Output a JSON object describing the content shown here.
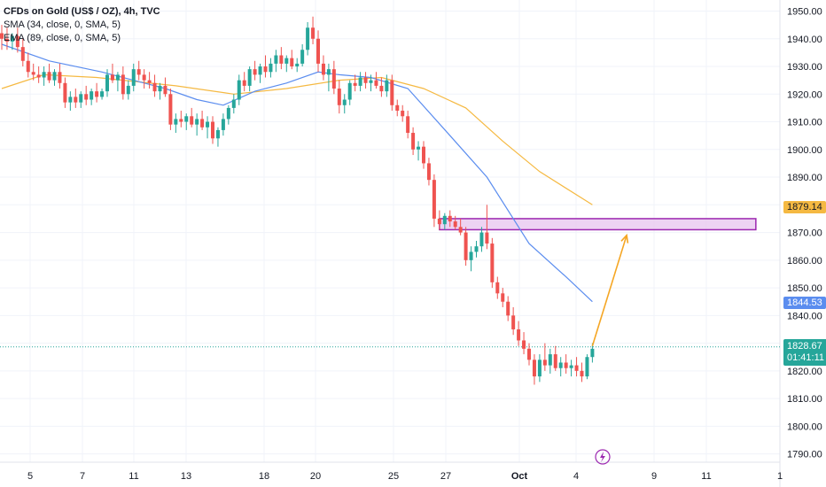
{
  "legend": {
    "title": "CFDs on Gold (US$ / OZ), 4h, TVC",
    "sma": "SMA (34, close, 0, SMA, 5)",
    "ema": "EMA (89, close, 0, SMA, 5)"
  },
  "price_tags": {
    "ema_value": "1879.14",
    "sma_value": "1844.53",
    "last_price": "1828.67",
    "countdown": "01:41:11"
  },
  "colors": {
    "up": "#26a69a",
    "down": "#ef5350",
    "sma_line": "#5b8def",
    "ema_line": "#f5b942",
    "zone_fill": "#e8c8f0",
    "zone_border": "#9c27b0",
    "arrow": "#f5a623",
    "countdown_bg": "#26a69a"
  },
  "chart_data": {
    "type": "candlestick",
    "x_ticks": [
      "5",
      "7",
      "11",
      "13",
      "18",
      "20",
      "25",
      "27",
      "Oct",
      "4",
      "9",
      "11",
      "1"
    ],
    "y_ticks": [
      1950,
      1940,
      1930,
      1920,
      1910,
      1900,
      1890,
      1880,
      1870,
      1860,
      1850,
      1840,
      1830,
      1820,
      1810,
      1800,
      1790
    ],
    "ylim": [
      1787,
      1954
    ],
    "candles": [
      [
        1942,
        1945,
        1936,
        1940
      ],
      [
        1940,
        1944,
        1936,
        1939
      ],
      [
        1939,
        1942,
        1936,
        1941
      ],
      [
        1941,
        1944,
        1935,
        1937
      ],
      [
        1937,
        1940,
        1930,
        1932
      ],
      [
        1932,
        1935,
        1926,
        1928
      ],
      [
        1928,
        1931,
        1925,
        1927
      ],
      [
        1927,
        1930,
        1924,
        1926
      ],
      [
        1926,
        1930,
        1923,
        1928
      ],
      [
        1928,
        1931,
        1924,
        1925
      ],
      [
        1925,
        1929,
        1923,
        1928
      ],
      [
        1928,
        1931,
        1922,
        1924
      ],
      [
        1924,
        1926,
        1915,
        1917
      ],
      [
        1917,
        1921,
        1914,
        1919
      ],
      [
        1919,
        1922,
        1915,
        1917
      ],
      [
        1917,
        1921,
        1915,
        1920
      ],
      [
        1920,
        1923,
        1916,
        1918
      ],
      [
        1918,
        1922,
        1916,
        1921
      ],
      [
        1921,
        1924,
        1917,
        1919
      ],
      [
        1919,
        1922,
        1918,
        1921
      ],
      [
        1921,
        1929,
        1919,
        1927
      ],
      [
        1927,
        1931,
        1924,
        1925
      ],
      [
        1925,
        1928,
        1921,
        1927
      ],
      [
        1927,
        1930,
        1918,
        1920
      ],
      [
        1920,
        1925,
        1918,
        1923
      ],
      [
        1923,
        1931,
        1921,
        1929
      ],
      [
        1929,
        1932,
        1925,
        1927
      ],
      [
        1927,
        1929,
        1922,
        1925
      ],
      [
        1925,
        1928,
        1922,
        1924
      ],
      [
        1924,
        1927,
        1919,
        1921
      ],
      [
        1921,
        1924,
        1918,
        1923
      ],
      [
        1923,
        1926,
        1919,
        1920
      ],
      [
        1920,
        1922,
        1907,
        1909
      ],
      [
        1909,
        1913,
        1906,
        1911
      ],
      [
        1911,
        1914,
        1908,
        1910
      ],
      [
        1910,
        1913,
        1907,
        1912
      ],
      [
        1912,
        1915,
        1908,
        1909
      ],
      [
        1909,
        1913,
        1905,
        1911
      ],
      [
        1911,
        1914,
        1907,
        1908
      ],
      [
        1908,
        1912,
        1904,
        1910
      ],
      [
        1910,
        1912,
        1902,
        1904
      ],
      [
        1904,
        1908,
        1901,
        1907
      ],
      [
        1907,
        1913,
        1905,
        1911
      ],
      [
        1911,
        1916,
        1909,
        1915
      ],
      [
        1915,
        1920,
        1913,
        1918
      ],
      [
        1918,
        1927,
        1916,
        1925
      ],
      [
        1925,
        1928,
        1921,
        1923
      ],
      [
        1923,
        1930,
        1921,
        1929
      ],
      [
        1929,
        1932,
        1925,
        1927
      ],
      [
        1927,
        1931,
        1924,
        1930
      ],
      [
        1930,
        1934,
        1926,
        1928
      ],
      [
        1928,
        1933,
        1926,
        1931
      ],
      [
        1931,
        1936,
        1928,
        1934
      ],
      [
        1934,
        1937,
        1929,
        1931
      ],
      [
        1931,
        1934,
        1928,
        1933
      ],
      [
        1933,
        1936,
        1929,
        1930
      ],
      [
        1930,
        1933,
        1928,
        1931
      ],
      [
        1931,
        1938,
        1930,
        1936
      ],
      [
        1936,
        1946,
        1934,
        1944
      ],
      [
        1944,
        1948,
        1938,
        1940
      ],
      [
        1940,
        1943,
        1928,
        1931
      ],
      [
        1931,
        1934,
        1925,
        1927
      ],
      [
        1927,
        1931,
        1921,
        1929
      ],
      [
        1929,
        1932,
        1920,
        1922
      ],
      [
        1922,
        1925,
        1913,
        1916
      ],
      [
        1916,
        1920,
        1913,
        1918
      ],
      [
        1918,
        1925,
        1916,
        1924
      ],
      [
        1924,
        1927,
        1921,
        1923
      ],
      [
        1923,
        1928,
        1921,
        1926
      ],
      [
        1926,
        1928,
        1922,
        1924
      ],
      [
        1924,
        1927,
        1921,
        1925
      ],
      [
        1925,
        1928,
        1922,
        1923
      ],
      [
        1923,
        1926,
        1919,
        1921
      ],
      [
        1921,
        1927,
        1919,
        1925
      ],
      [
        1925,
        1927,
        1914,
        1916
      ],
      [
        1916,
        1918,
        1912,
        1914
      ],
      [
        1914,
        1916,
        1910,
        1912
      ],
      [
        1912,
        1914,
        1904,
        1906
      ],
      [
        1906,
        1908,
        1898,
        1900
      ],
      [
        1900,
        1903,
        1896,
        1901
      ],
      [
        1901,
        1903,
        1893,
        1895
      ],
      [
        1895,
        1897,
        1887,
        1889
      ],
      [
        1889,
        1891,
        1872,
        1875
      ],
      [
        1875,
        1878,
        1871,
        1873
      ],
      [
        1873,
        1877,
        1871,
        1876
      ],
      [
        1876,
        1878,
        1872,
        1874
      ],
      [
        1874,
        1876,
        1871,
        1872
      ],
      [
        1872,
        1875,
        1869,
        1870
      ],
      [
        1870,
        1872,
        1858,
        1860
      ],
      [
        1860,
        1865,
        1856,
        1863
      ],
      [
        1863,
        1867,
        1861,
        1865
      ],
      [
        1865,
        1872,
        1863,
        1870
      ],
      [
        1870,
        1880,
        1864,
        1866
      ],
      [
        1866,
        1868,
        1850,
        1852
      ],
      [
        1852,
        1854,
        1846,
        1848
      ],
      [
        1848,
        1850,
        1843,
        1845
      ],
      [
        1845,
        1847,
        1838,
        1840
      ],
      [
        1840,
        1843,
        1833,
        1835
      ],
      [
        1835,
        1838,
        1829,
        1831
      ],
      [
        1831,
        1834,
        1826,
        1828
      ],
      [
        1828,
        1830,
        1822,
        1824
      ],
      [
        1824,
        1826,
        1815,
        1818
      ],
      [
        1818,
        1826,
        1816,
        1824
      ],
      [
        1824,
        1830,
        1820,
        1822
      ],
      [
        1822,
        1828,
        1819,
        1826
      ],
      [
        1826,
        1829,
        1820,
        1821
      ],
      [
        1821,
        1825,
        1818,
        1823
      ],
      [
        1823,
        1826,
        1819,
        1821
      ],
      [
        1821,
        1824,
        1818,
        1822
      ],
      [
        1822,
        1825,
        1818,
        1820
      ],
      [
        1820,
        1823,
        1816,
        1818
      ],
      [
        1818,
        1826,
        1817,
        1825
      ],
      [
        1825,
        1830,
        1823,
        1828
      ]
    ],
    "sma_34": [
      [
        0,
        1938
      ],
      [
        9,
        1932
      ],
      [
        19,
        1928
      ],
      [
        31,
        1922
      ],
      [
        37,
        1918
      ],
      [
        42,
        1916
      ],
      [
        48,
        1921
      ],
      [
        54,
        1924
      ],
      [
        60,
        1928
      ],
      [
        64,
        1927
      ],
      [
        70,
        1926
      ],
      [
        77,
        1922
      ],
      [
        85,
        1905
      ],
      [
        92,
        1890
      ],
      [
        100,
        1866
      ],
      [
        107,
        1854
      ],
      [
        112,
        1845
      ]
    ],
    "ema_89": [
      [
        0,
        1922
      ],
      [
        8,
        1927
      ],
      [
        18,
        1926
      ],
      [
        33,
        1923
      ],
      [
        44,
        1920
      ],
      [
        54,
        1922
      ],
      [
        64,
        1925
      ],
      [
        72,
        1926
      ],
      [
        80,
        1922
      ],
      [
        88,
        1915
      ],
      [
        95,
        1903
      ],
      [
        102,
        1892
      ],
      [
        112,
        1880
      ]
    ],
    "zone": {
      "from_index": 83,
      "to_index": 143,
      "low": 1871,
      "high": 1875
    },
    "projection": [
      [
        112,
        1829
      ],
      [
        118,
        1869
      ]
    ],
    "last_price_line": 1828.67
  }
}
